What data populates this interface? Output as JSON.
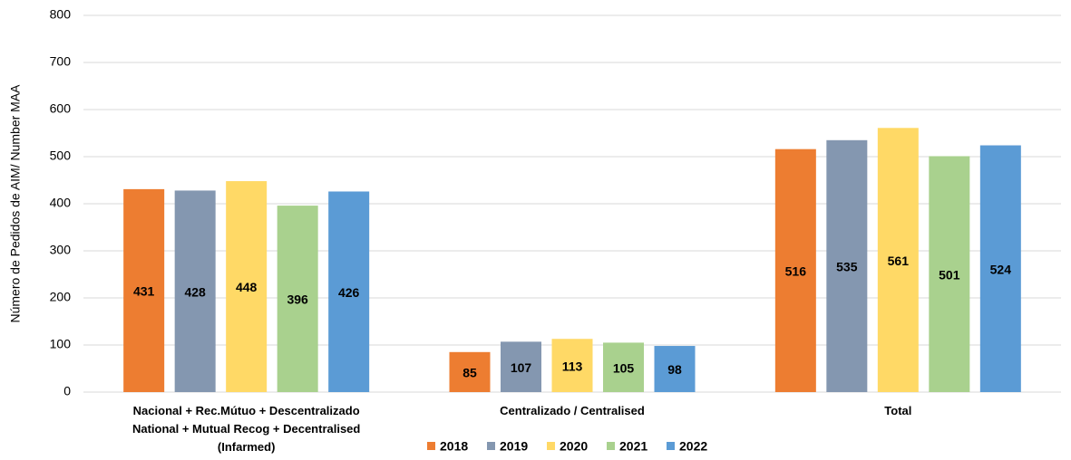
{
  "chart_data": {
    "type": "bar",
    "y_label": "Número de Pedidos de AIM/ Number MAA",
    "categories": [
      "Nacional +  Rec.Mútuo + Descentralizado\nNational + Mutual Recog + Decentralised\n(Infarmed)",
      "Centralizado /  Centralised",
      "Total"
    ],
    "series": [
      {
        "name": "2018",
        "color": "#ed7d31",
        "values": [
          431,
          85,
          516
        ]
      },
      {
        "name": "2019",
        "color": "#8497b0",
        "values": [
          428,
          107,
          535
        ]
      },
      {
        "name": "2020",
        "color": "#ffd966",
        "values": [
          448,
          113,
          561
        ]
      },
      {
        "name": "2021",
        "color": "#a9d18e",
        "values": [
          396,
          105,
          501
        ]
      },
      {
        "name": "2022",
        "color": "#5b9bd5",
        "values": [
          426,
          98,
          524
        ]
      }
    ],
    "ylim": [
      0,
      800
    ],
    "yticks": [
      0,
      100,
      200,
      300,
      400,
      500,
      600,
      700,
      800
    ],
    "grid": true,
    "legend": "bottom"
  }
}
